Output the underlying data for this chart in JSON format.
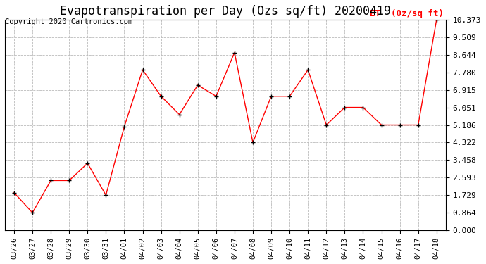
{
  "title": "Evapotranspiration per Day (Ozs sq/ft) 20200419",
  "copyright": "Copyright 2020 Cartronics.com",
  "legend_label": "ET  (0z/sq ft)",
  "dates": [
    "03/26",
    "03/27",
    "03/28",
    "03/29",
    "03/30",
    "03/31",
    "04/01",
    "04/02",
    "04/03",
    "04/04",
    "04/05",
    "04/06",
    "04/07",
    "04/08",
    "04/09",
    "04/10",
    "04/11",
    "04/12",
    "04/13",
    "04/14",
    "04/15",
    "04/16",
    "04/17",
    "04/18"
  ],
  "values": [
    1.85,
    0.864,
    2.45,
    2.45,
    3.3,
    1.729,
    5.1,
    7.9,
    6.6,
    5.7,
    7.15,
    6.6,
    8.75,
    4.322,
    6.6,
    6.6,
    7.9,
    5.186,
    6.051,
    6.051,
    5.186,
    5.186,
    5.186,
    10.373
  ],
  "y_ticks": [
    0.0,
    0.864,
    1.729,
    2.593,
    3.458,
    4.322,
    5.186,
    6.051,
    6.915,
    7.78,
    8.644,
    9.509,
    10.373
  ],
  "ylim": [
    0.0,
    10.373
  ],
  "line_color": "red",
  "marker_color": "black",
  "grid_color": "#bbbbbb",
  "bg_color": "white",
  "title_fontsize": 12,
  "copyright_fontsize": 7.5,
  "legend_color": "red",
  "legend_fontsize": 9,
  "tick_fontsize": 7.5,
  "ytick_fontsize": 8
}
